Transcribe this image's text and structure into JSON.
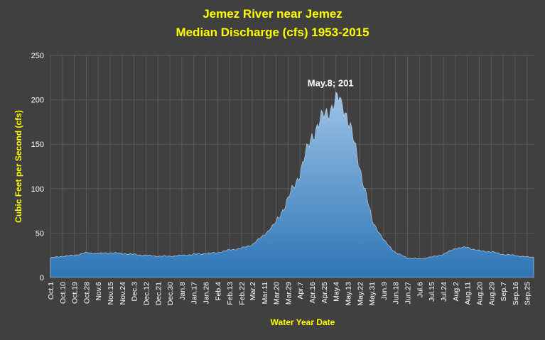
{
  "chart_data": {
    "type": "area",
    "title": "Jemez River near Jemez",
    "subtitle": "Median Discharge (cfs) 1953-2015",
    "xlabel": "Water Year Date",
    "ylabel": "Cubic Feet per Second (cfs)",
    "ylim": [
      0,
      250
    ],
    "yticks": [
      "0",
      "50",
      "100",
      "150",
      "200",
      "250"
    ],
    "x_tick_labels": [
      "Oct.1",
      "Oct.10",
      "Oct.19",
      "Oct.28",
      "Nov.6",
      "Nov.15",
      "Nov.24",
      "Dec.3",
      "Dec.12",
      "Dec.21",
      "Dec.30",
      "Jan.8",
      "Jan.17",
      "Jan.26",
      "Feb.4",
      "Feb.13",
      "Feb.22",
      "Mar.2",
      "Mar.11",
      "Mar.20",
      "Mar.29",
      "Apr.7",
      "Apr.16",
      "Apr.25",
      "May.4",
      "May.13",
      "May.22",
      "May.31",
      "Jun.9",
      "Jun.18",
      "Jun.27",
      "Jul.6",
      "Jul.15",
      "Jul.24",
      "Aug.2",
      "Aug.11",
      "Aug.20",
      "Aug.29",
      "Sep.7",
      "Sep.16",
      "Sep.25"
    ],
    "grid": true,
    "legend": "none",
    "series": [
      {
        "keypoints": [
          [
            "Oct.1",
            22
          ],
          [
            "Oct.10",
            24
          ],
          [
            "Oct.19",
            25
          ],
          [
            "Oct.28",
            28
          ],
          [
            "Nov.6",
            27
          ],
          [
            "Nov.15",
            28
          ],
          [
            "Nov.24",
            27
          ],
          [
            "Dec.3",
            26
          ],
          [
            "Dec.12",
            25
          ],
          [
            "Dec.21",
            24
          ],
          [
            "Dec.30",
            24
          ],
          [
            "Jan.8",
            25
          ],
          [
            "Jan.17",
            26
          ],
          [
            "Jan.26",
            27
          ],
          [
            "Feb.4",
            28
          ],
          [
            "Feb.13",
            31
          ],
          [
            "Feb.22",
            33
          ],
          [
            "Mar.2",
            37
          ],
          [
            "Mar.11",
            48
          ],
          [
            "Mar.20",
            62
          ],
          [
            "Mar.29",
            88
          ],
          [
            "Apr.7",
            118
          ],
          [
            "Apr.16",
            160
          ],
          [
            "Apr.25",
            182
          ],
          [
            "May.4",
            198
          ],
          [
            "May.8",
            201
          ],
          [
            "May.13",
            180
          ],
          [
            "May.22",
            125
          ],
          [
            "May.31",
            65
          ],
          [
            "Jun.9",
            42
          ],
          [
            "Jun.18",
            28
          ],
          [
            "Jun.27",
            22
          ],
          [
            "Jul.6",
            21
          ],
          [
            "Jul.15",
            23
          ],
          [
            "Jul.24",
            26
          ],
          [
            "Aug.2",
            33
          ],
          [
            "Aug.11",
            34
          ],
          [
            "Aug.20",
            30
          ],
          [
            "Aug.29",
            29
          ],
          [
            "Sep.7",
            26
          ],
          [
            "Sep.16",
            25
          ],
          [
            "Sep.25",
            23
          ],
          [
            "Sep.30",
            23
          ]
        ]
      }
    ],
    "annotation": {
      "label": "May.8; 201",
      "x": "May.8",
      "y": 201
    },
    "colors": {
      "fill_top": "#9dc3e6",
      "fill_bottom": "#2e75b6",
      "grid": "#5a5a5a",
      "axis_text": "#ffffff",
      "title": "#ffff00"
    }
  }
}
